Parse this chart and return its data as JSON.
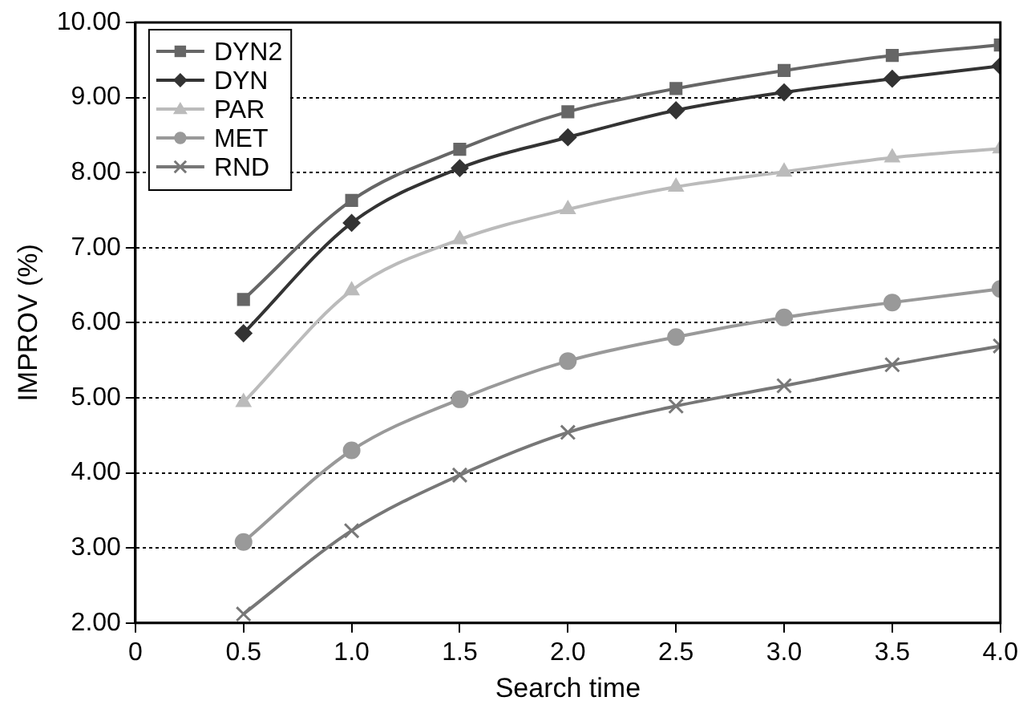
{
  "chart_data": {
    "type": "line",
    "xlabel": "Search time",
    "ylabel": "IMPROV (%)",
    "x": [
      0.5,
      1.0,
      1.5,
      2.0,
      2.5,
      3.0,
      3.5,
      4.0
    ],
    "series": [
      {
        "name": "DYN2",
        "color": "#666666",
        "marker": "square",
        "values": [
          6.31,
          7.63,
          8.31,
          8.81,
          9.12,
          9.36,
          9.56,
          9.7
        ]
      },
      {
        "name": "DYN",
        "color": "#333333",
        "marker": "diamond",
        "values": [
          5.86,
          7.33,
          8.06,
          8.47,
          8.83,
          9.07,
          9.25,
          9.42
        ]
      },
      {
        "name": "PAR",
        "color": "#bbbbbb",
        "marker": "triangle",
        "values": [
          4.94,
          6.43,
          7.11,
          7.51,
          7.81,
          8.01,
          8.2,
          8.32
        ]
      },
      {
        "name": "MET",
        "color": "#999999",
        "marker": "circle",
        "values": [
          3.08,
          4.3,
          4.98,
          5.49,
          5.81,
          6.07,
          6.27,
          6.45
        ]
      },
      {
        "name": "RND",
        "color": "#777777",
        "marker": "cross",
        "values": [
          2.12,
          3.23,
          3.97,
          4.54,
          4.89,
          5.16,
          5.44,
          5.69
        ]
      }
    ],
    "xlim": [
      0,
      4
    ],
    "xticks": [
      0,
      {
        "value": 0.5,
        "label": "0.5"
      },
      {
        "value": 1,
        "label": "1.0"
      },
      {
        "value": 1.5,
        "label": "1.5"
      },
      {
        "value": 2,
        "label": "2.0"
      },
      {
        "value": 2.5,
        "label": "2.5"
      },
      {
        "value": 3,
        "label": "3.0"
      },
      {
        "value": 3.5,
        "label": "3.5"
      },
      {
        "value": 4,
        "label": "4.0"
      }
    ],
    "ylim": [
      2,
      10
    ],
    "yticks": [
      {
        "value": 2,
        "label": "2.00"
      },
      {
        "value": 3,
        "label": "3.00"
      },
      {
        "value": 4,
        "label": "4.00"
      },
      {
        "value": 5,
        "label": "5.00"
      },
      {
        "value": 6,
        "label": "6.00"
      },
      {
        "value": 7,
        "label": "7.00"
      },
      {
        "value": 8,
        "label": "8.00"
      },
      {
        "value": 9,
        "label": "9.00"
      },
      {
        "value": 10,
        "label": "10.00"
      }
    ],
    "grid": "y",
    "line_style": "solid",
    "legend": "top left"
  }
}
